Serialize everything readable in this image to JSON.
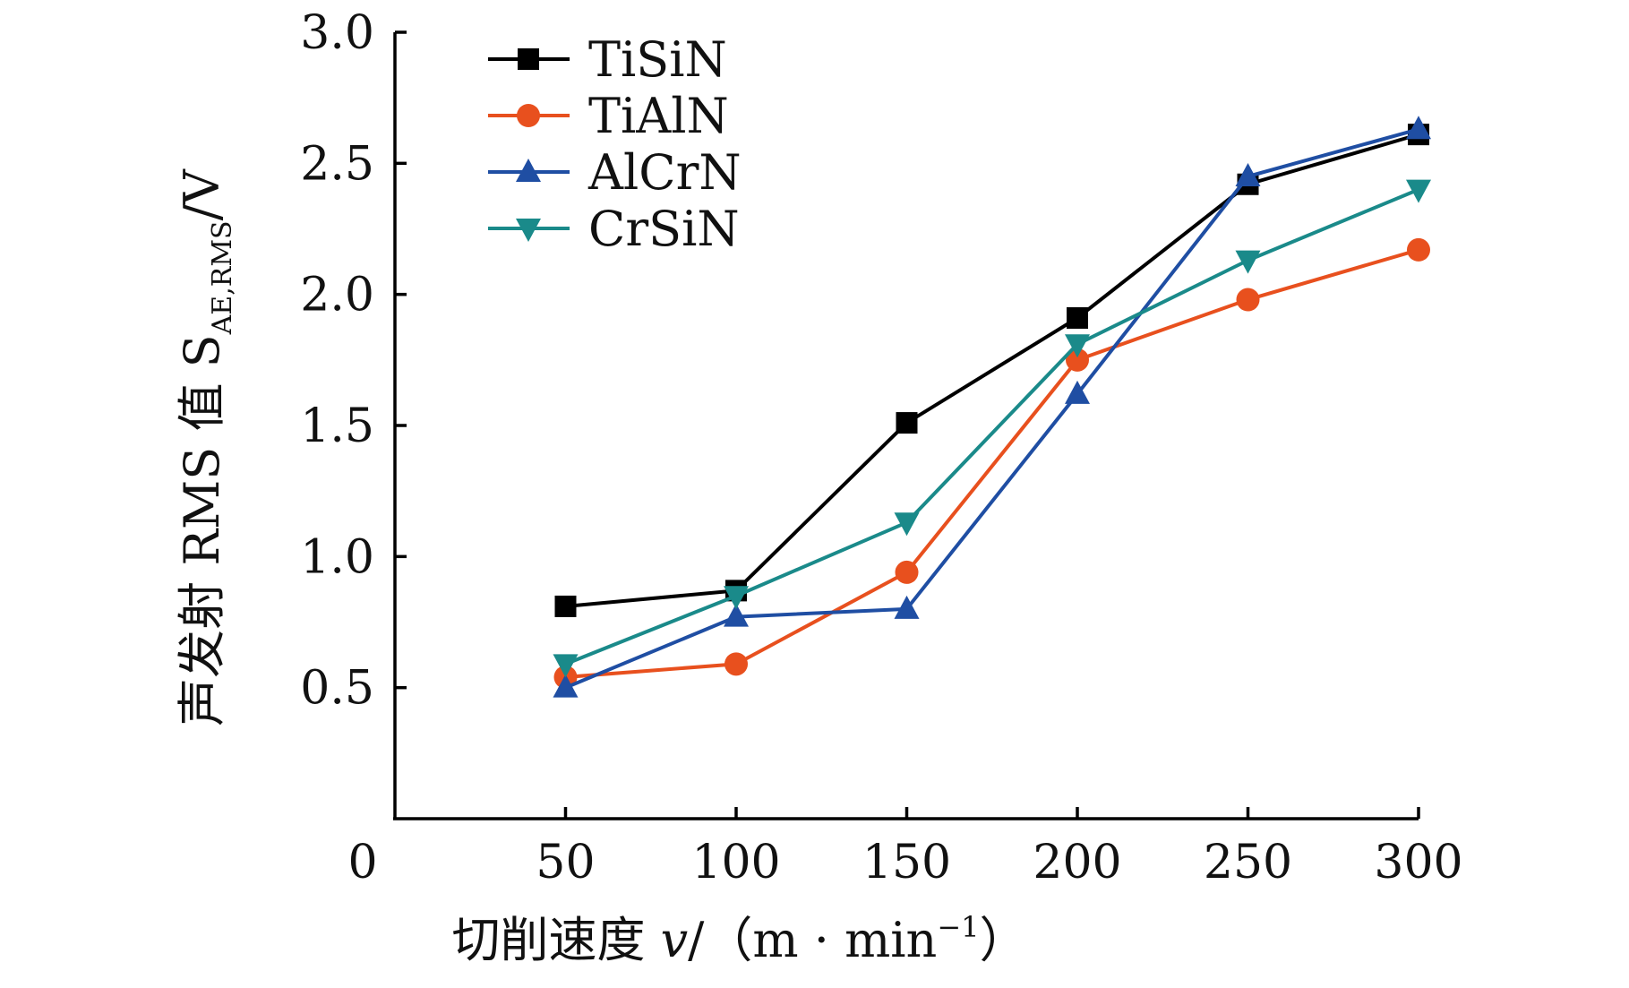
{
  "chart_data": {
    "type": "line",
    "title": "",
    "xlabel": "切削速度 v/(m·min⁻¹)",
    "ylabel": "声发射 RMS 值 S_AE,RMS/V",
    "xlabel_parts": {
      "main": "切削速度 ",
      "var": "v",
      "slash": "/",
      "unit": "（m · min",
      "sup": "−1",
      "close": "）"
    },
    "ylabel_parts": {
      "main": "声发射 RMS 值 ",
      "var": "S",
      "sub": "AE,RMS",
      "unit": "/V"
    },
    "x": [
      50,
      100,
      150,
      200,
      250,
      300
    ],
    "x_tick_labels": [
      "0",
      "50",
      "100",
      "150",
      "200",
      "250",
      "300"
    ],
    "y_tick_labels": [
      "0.5",
      "1.0",
      "1.5",
      "2.0",
      "2.5",
      "3.0"
    ],
    "y_ticks": [
      0.5,
      1.0,
      1.5,
      2.0,
      2.5,
      3.0
    ],
    "xlim": [
      0,
      300
    ],
    "ylim": [
      0,
      3.0
    ],
    "grid": false,
    "legend_position": "top-left",
    "series": [
      {
        "name": "TiSiN",
        "color": "#000000",
        "marker": "square",
        "values": [
          0.81,
          0.87,
          1.51,
          1.91,
          2.42,
          2.61
        ]
      },
      {
        "name": "TiAlN",
        "color": "#e8501e",
        "marker": "circle",
        "values": [
          0.54,
          0.59,
          0.94,
          1.75,
          1.98,
          2.17
        ]
      },
      {
        "name": "AlCrN",
        "color": "#1f4ea3",
        "marker": "triangle-up",
        "values": [
          0.5,
          0.77,
          0.8,
          1.62,
          2.45,
          2.63
        ]
      },
      {
        "name": "CrSiN",
        "color": "#1a8a8a",
        "marker": "triangle-down",
        "values": [
          0.59,
          0.85,
          1.13,
          1.81,
          2.13,
          2.4
        ]
      }
    ]
  }
}
